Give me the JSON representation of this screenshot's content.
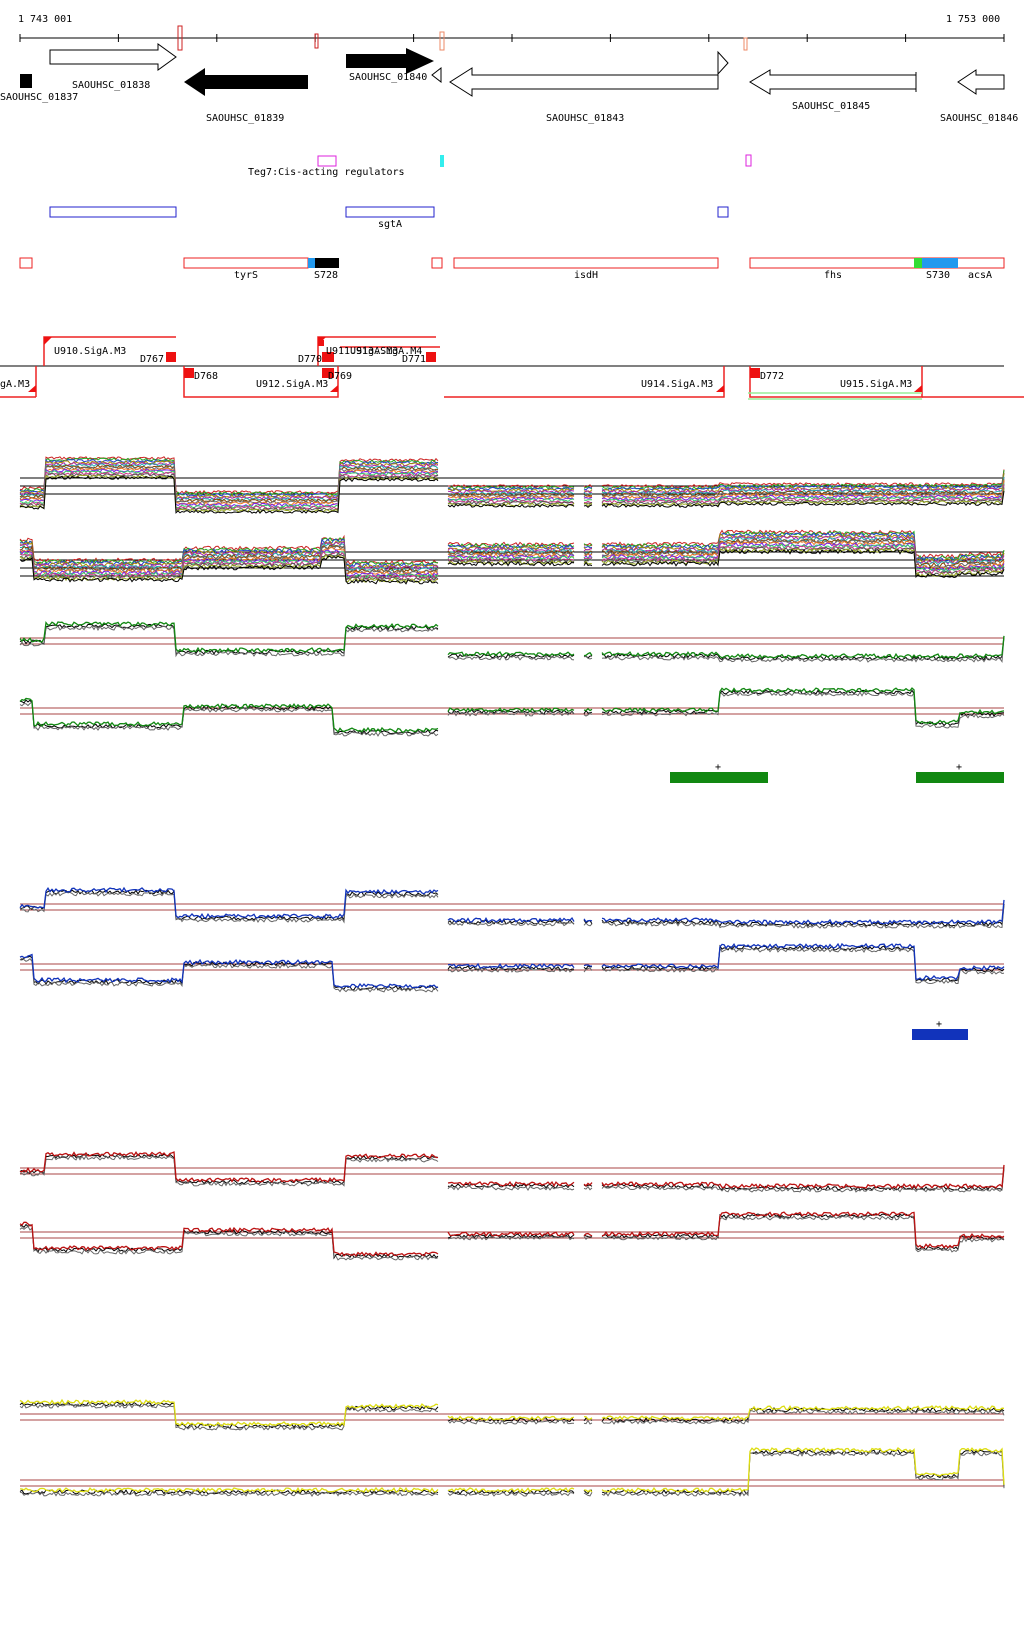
{
  "ruler": {
    "start": "1 743 001",
    "end": "1 753 000"
  },
  "genes": [
    {
      "label": "SAOUHSC_01837"
    },
    {
      "label": "SAOUHSC_01838"
    },
    {
      "label": "SAOUHSC_01839"
    },
    {
      "label": "SAOUHSC_01840"
    },
    {
      "label": "SAOUHSC_01843"
    },
    {
      "label": "SAOUHSC_01845"
    },
    {
      "label": "SAOUHSC_01846"
    }
  ],
  "regulators": {
    "label": "Teg7:Cis-acting regulators"
  },
  "blue_features": [
    {
      "label": "sgtA"
    }
  ],
  "red_features": [
    {
      "label": "tyrS"
    },
    {
      "label": "S728"
    },
    {
      "label": "isdH"
    },
    {
      "label": "fhs"
    },
    {
      "label": "S730"
    },
    {
      "label": "acsA"
    }
  ],
  "segments": [
    {
      "label": "U910.SigA.M3"
    },
    {
      "label": "D767"
    },
    {
      "label": "D768"
    },
    {
      "label": "D770"
    },
    {
      "label": "U911.SigA.M3"
    },
    {
      "label": "U913.SigA.M4"
    },
    {
      "label": "D771"
    },
    {
      "label": "D769"
    },
    {
      "label": "U912.SigA.M3"
    },
    {
      "label": "U914.SigA.M3"
    },
    {
      "label": "D772"
    },
    {
      "label": "U915.SigA.M3"
    },
    {
      "label": "gA.M3"
    }
  ],
  "marks": {
    "plus": "+"
  },
  "colors": {
    "green": "#118811",
    "blue": "#1133bb",
    "red": "#bb1111",
    "yellow": "#dddd11",
    "feature_red": "#ee2222",
    "feature_blue": "#2222cc",
    "magenta": "#dd22dd",
    "cyan": "#22dddd"
  }
}
